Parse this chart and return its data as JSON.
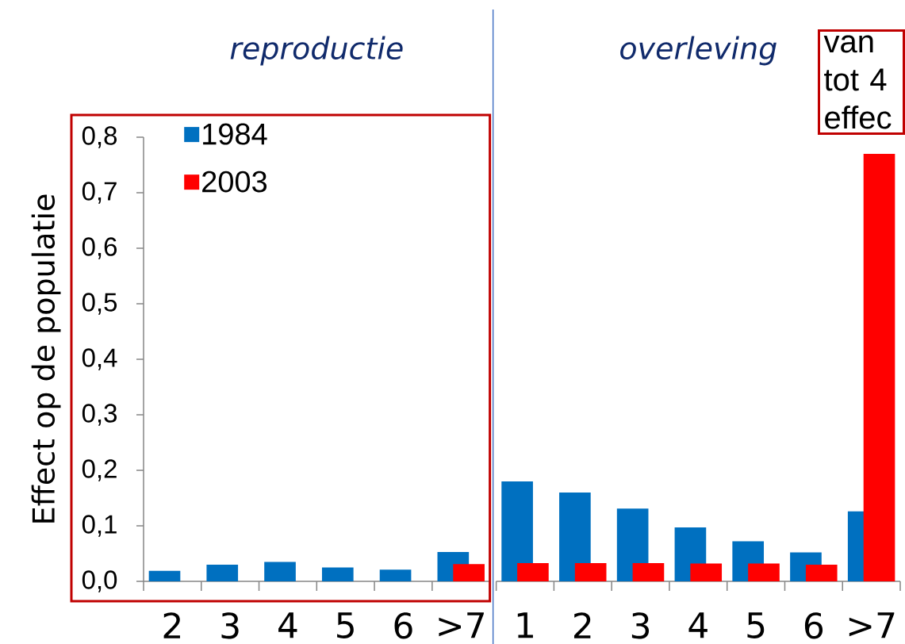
{
  "chart_data": [
    {
      "type": "bar",
      "title": "reproductie",
      "ylabel": "Effect op de populatie",
      "categories": [
        "2",
        "3",
        "4",
        "5",
        "6",
        ">7"
      ],
      "series": [
        {
          "name": "1984",
          "color": "#0070c0",
          "values": [
            0.019,
            0.03,
            0.035,
            0.025,
            0.021,
            0.053
          ]
        },
        {
          "name": "2003",
          "color": "#ff0000",
          "values": [
            null,
            null,
            null,
            null,
            null,
            0.031
          ]
        }
      ],
      "ylim": [
        0,
        0.8
      ],
      "yticks": [
        {
          "value": 0,
          "label": "0,0"
        },
        {
          "value": 0.1,
          "label": "0,1"
        },
        {
          "value": 0.2,
          "label": "0,2"
        },
        {
          "value": 0.3,
          "label": "0,3"
        },
        {
          "value": 0.4,
          "label": "0,4"
        },
        {
          "value": 0.5,
          "label": "0,5"
        },
        {
          "value": 0.6,
          "label": "0,6"
        },
        {
          "value": 0.7,
          "label": "0,7"
        },
        {
          "value": 0.8,
          "label": "0,8"
        }
      ],
      "legend": "top left"
    },
    {
      "type": "bar",
      "title": "overleving",
      "categories": [
        "1",
        "2",
        "3",
        "4",
        "5",
        "6",
        ">7"
      ],
      "series": [
        {
          "color": "#0070c0",
          "values": [
            0.18,
            0.16,
            0.131,
            0.097,
            0.072,
            0.052,
            0.126
          ]
        },
        {
          "color": "#ff0000",
          "values": [
            0.033,
            0.033,
            0.033,
            0.032,
            0.032,
            0.03,
            0.77
          ]
        }
      ],
      "ylim": [
        0,
        0.8
      ],
      "tick_labels": "x",
      "annotations": [
        "van tot 4 effec"
      ]
    }
  ]
}
